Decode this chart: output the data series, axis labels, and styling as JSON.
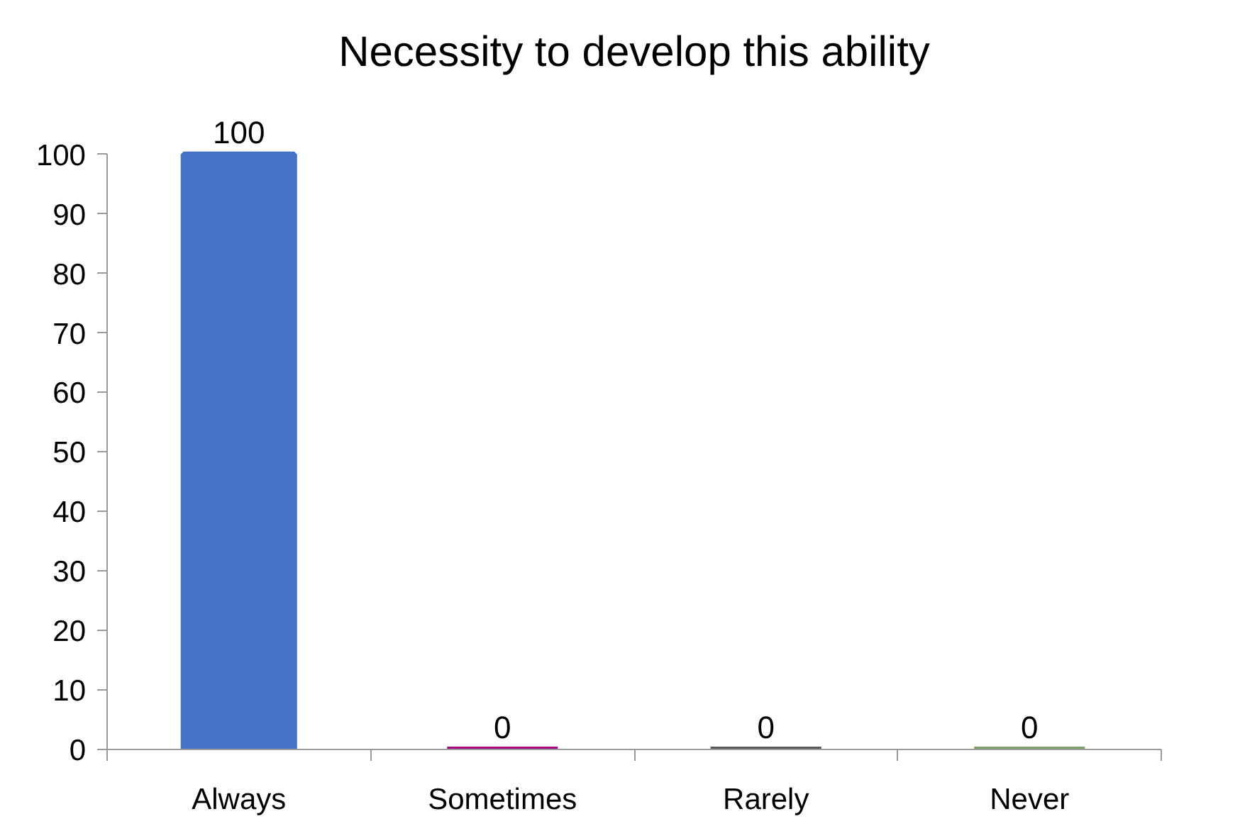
{
  "chart_data": {
    "type": "bar",
    "title": "Necessity to develop this ability",
    "categories": [
      "Always",
      "Sometimes",
      "Rarely",
      "Never"
    ],
    "values": [
      100,
      0,
      0,
      0
    ],
    "colors": [
      "#4472c4",
      "#a5087e",
      "#5a5a5a",
      "#7f9f6a"
    ],
    "ylim": [
      0,
      100
    ],
    "yticks": [
      0,
      10,
      20,
      30,
      40,
      50,
      60,
      70,
      80,
      90,
      100
    ],
    "data_labels": true
  }
}
